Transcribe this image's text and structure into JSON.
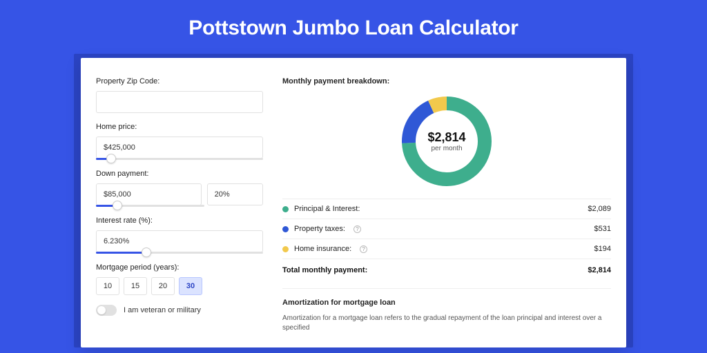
{
  "page": {
    "title": "Pottstown Jumbo Loan Calculator",
    "bg_color": "#3654e6"
  },
  "form": {
    "zip": {
      "label": "Property Zip Code:",
      "value": ""
    },
    "home_price": {
      "label": "Home price:",
      "value": "$425,000",
      "slider_pct": 9
    },
    "down_payment": {
      "label": "Down payment:",
      "amount": "$85,000",
      "pct": "20%",
      "slider_pct": 20
    },
    "interest": {
      "label": "Interest rate (%):",
      "value": "6.230%",
      "slider_pct": 30
    },
    "period": {
      "label": "Mortgage period (years):",
      "options": [
        "10",
        "15",
        "20",
        "30"
      ],
      "selected": "30"
    },
    "veteran": {
      "label": "I am veteran or military",
      "on": false
    }
  },
  "breakdown": {
    "title": "Monthly payment breakdown:",
    "center_amount": "$2,814",
    "center_sub": "per month",
    "donut": {
      "size": 130,
      "thickness": 20,
      "slices": [
        {
          "key": "principal_interest",
          "value": 2089,
          "color": "#3eae8d"
        },
        {
          "key": "property_taxes",
          "value": 531,
          "color": "#2f58d6"
        },
        {
          "key": "home_insurance",
          "value": 194,
          "color": "#f2c94c"
        }
      ]
    },
    "items": [
      {
        "label": "Principal & Interest:",
        "value": "$2,089",
        "color": "#3eae8d",
        "info": false
      },
      {
        "label": "Property taxes:",
        "value": "$531",
        "color": "#2f58d6",
        "info": true
      },
      {
        "label": "Home insurance:",
        "value": "$194",
        "color": "#f2c94c",
        "info": true
      }
    ],
    "total_label": "Total monthly payment:",
    "total_value": "$2,814"
  },
  "amortization": {
    "title": "Amortization for mortgage loan",
    "text": "Amortization for a mortgage loan refers to the gradual repayment of the loan principal and interest over a specified"
  }
}
